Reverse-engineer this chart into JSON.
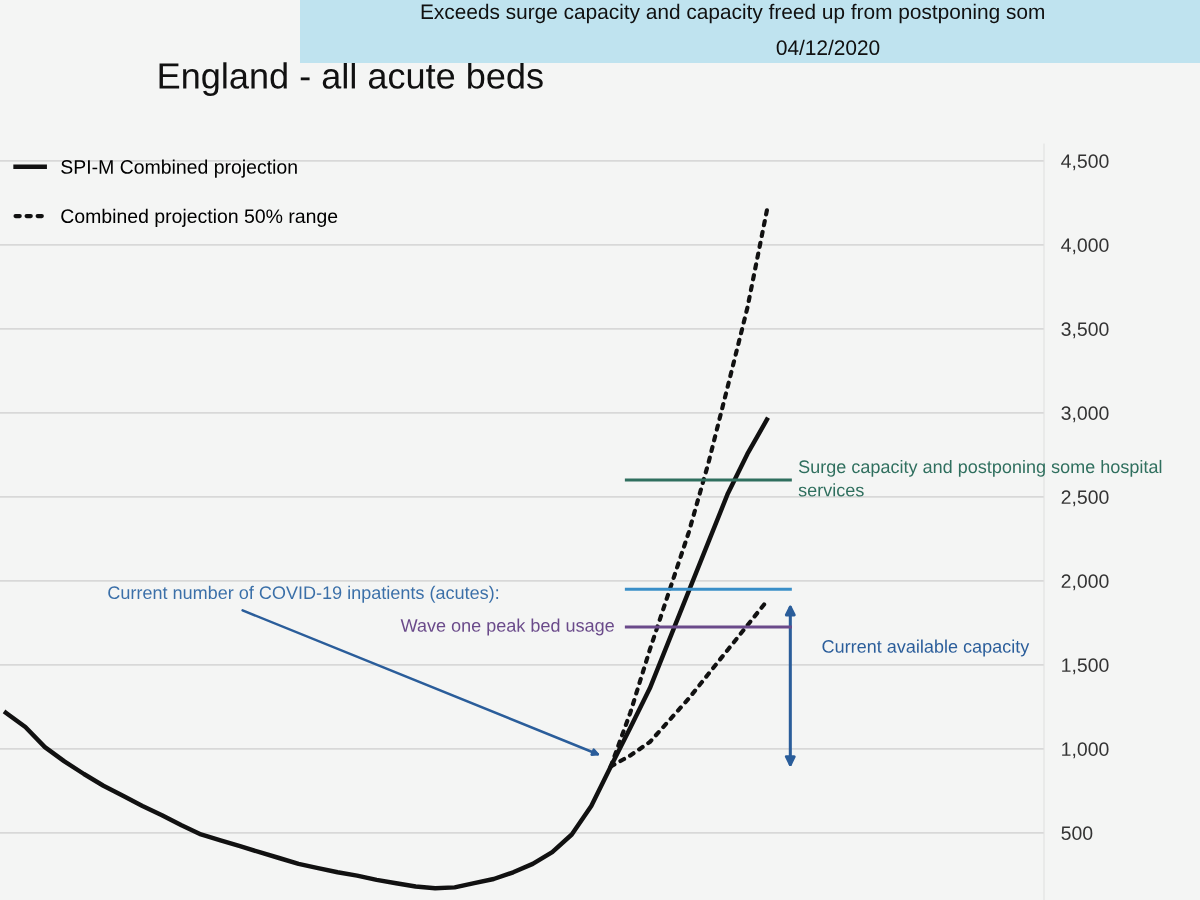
{
  "chart_data": {
    "type": "line",
    "title": "England - all acute beds",
    "categories": [
      null,
      null,
      null,
      null,
      null,
      null,
      null,
      null,
      null,
      null,
      null,
      null,
      null,
      null,
      null,
      null,
      null,
      null,
      null,
      null,
      null,
      null,
      null,
      null,
      null,
      null,
      null,
      null,
      null,
      null,
      null,
      null,
      null,
      null,
      null,
      null,
      null,
      null,
      null,
      null
    ],
    "series": [
      {
        "name": "SPI-M Combined projection",
        "color": "#111111",
        "line_style": "solid",
        "values": [
          1215,
          1130,
          1010,
          925,
          850,
          780,
          720,
          660,
          605,
          545,
          490,
          455,
          420,
          385,
          350,
          315,
          290,
          265,
          245,
          220,
          200,
          180,
          170,
          175,
          200,
          225,
          265,
          315,
          385,
          490,
          660,
          895,
          1125,
          1360,
          1650,
          1940,
          2230,
          2520,
          2755,
          2960
        ]
      },
      {
        "name": "Combined projection 50% range",
        "color": "#111111",
        "line_style": "dotted",
        "values": [
          null,
          null,
          null,
          null,
          null,
          null,
          null,
          null,
          null,
          null,
          null,
          null,
          null,
          null,
          null,
          null,
          null,
          null,
          null,
          null,
          null,
          null,
          null,
          null,
          null,
          null,
          null,
          null,
          null,
          null,
          null,
          895,
          1215,
          1590,
          1940,
          2290,
          2700,
          3160,
          3625,
          4205
        ]
      },
      {
        "color": "#111111",
        "line_style": "dotted",
        "values": [
          null,
          null,
          null,
          null,
          null,
          null,
          null,
          null,
          null,
          null,
          null,
          null,
          null,
          null,
          null,
          null,
          null,
          null,
          null,
          null,
          null,
          null,
          null,
          null,
          null,
          null,
          null,
          null,
          null,
          null,
          null,
          895,
          960,
          1040,
          1170,
          1300,
          1445,
          1590,
          1735,
          1880
        ]
      }
    ],
    "ylim": [
      100,
      4600
    ],
    "yticks": [
      {
        "value": 500,
        "label": "500"
      },
      {
        "value": 1000,
        "label": "1,000"
      },
      {
        "value": 1500,
        "label": "1,500"
      },
      {
        "value": 2000,
        "label": "2,000"
      },
      {
        "value": 2500,
        "label": "2,500"
      },
      {
        "value": 3000,
        "label": "3,000"
      },
      {
        "value": 3500,
        "label": "3,500"
      },
      {
        "value": 4000,
        "label": "4,000"
      },
      {
        "value": 4500,
        "label": "4,500"
      }
    ],
    "tick_labels": "y",
    "grid": "y",
    "legend": "top left",
    "ref_lines": [
      {
        "axis": "y",
        "value": 2600,
        "label": "Surge capacity and postponing some hospital services",
        "color": "#2f6f5e"
      },
      {
        "axis": "y",
        "value": 1950,
        "color": "#3a8fc8"
      },
      {
        "axis": "y",
        "value": 1725,
        "label": "Wave one peak bed usage",
        "color": "#6a4a8a"
      }
    ],
    "annotations": [
      "Exceeds surge capacity and capacity freed up from postponing som",
      "04/12/2020",
      "Current number of COVID-19 inpatients (acutes):",
      "Current available capacity"
    ]
  }
}
